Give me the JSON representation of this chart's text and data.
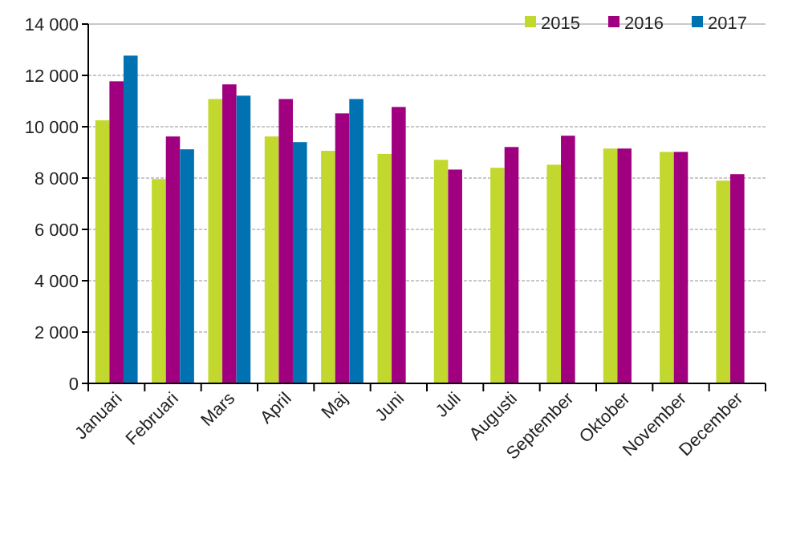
{
  "chart_data": {
    "type": "bar",
    "categories": [
      "Januari",
      "Februari",
      "Mars",
      "April",
      "Maj",
      "Juni",
      "Juli",
      "Augusti",
      "September",
      "Oktober",
      "November",
      "December"
    ],
    "series": [
      {
        "name": "2015",
        "color": "#c2d82e",
        "values": [
          10250,
          7960,
          11080,
          9620,
          9060,
          8940,
          8710,
          8400,
          8520,
          9150,
          9020,
          7900
        ]
      },
      {
        "name": "2016",
        "color": "#a0007f",
        "values": [
          11770,
          9620,
          11650,
          11080,
          10520,
          10770,
          8330,
          9210,
          9650,
          9150,
          9020,
          8150
        ]
      },
      {
        "name": "2017",
        "color": "#0071b1",
        "values": [
          12770,
          9120,
          11210,
          9400,
          11080,
          null,
          null,
          null,
          null,
          null,
          null,
          null
        ]
      }
    ],
    "ylim": [
      0,
      14000
    ],
    "yticks": [
      0,
      {
        "value": 2000,
        "label": "2 000"
      },
      {
        "value": 4000,
        "label": "4 000"
      },
      {
        "value": 6000,
        "label": "6 000"
      },
      {
        "value": 8000,
        "label": "8 000"
      },
      {
        "value": 10000,
        "label": "10 000"
      },
      {
        "value": 12000,
        "label": "12 000"
      },
      {
        "value": 14000,
        "label": "14 000"
      }
    ],
    "grid": "y",
    "legend": "top right"
  }
}
